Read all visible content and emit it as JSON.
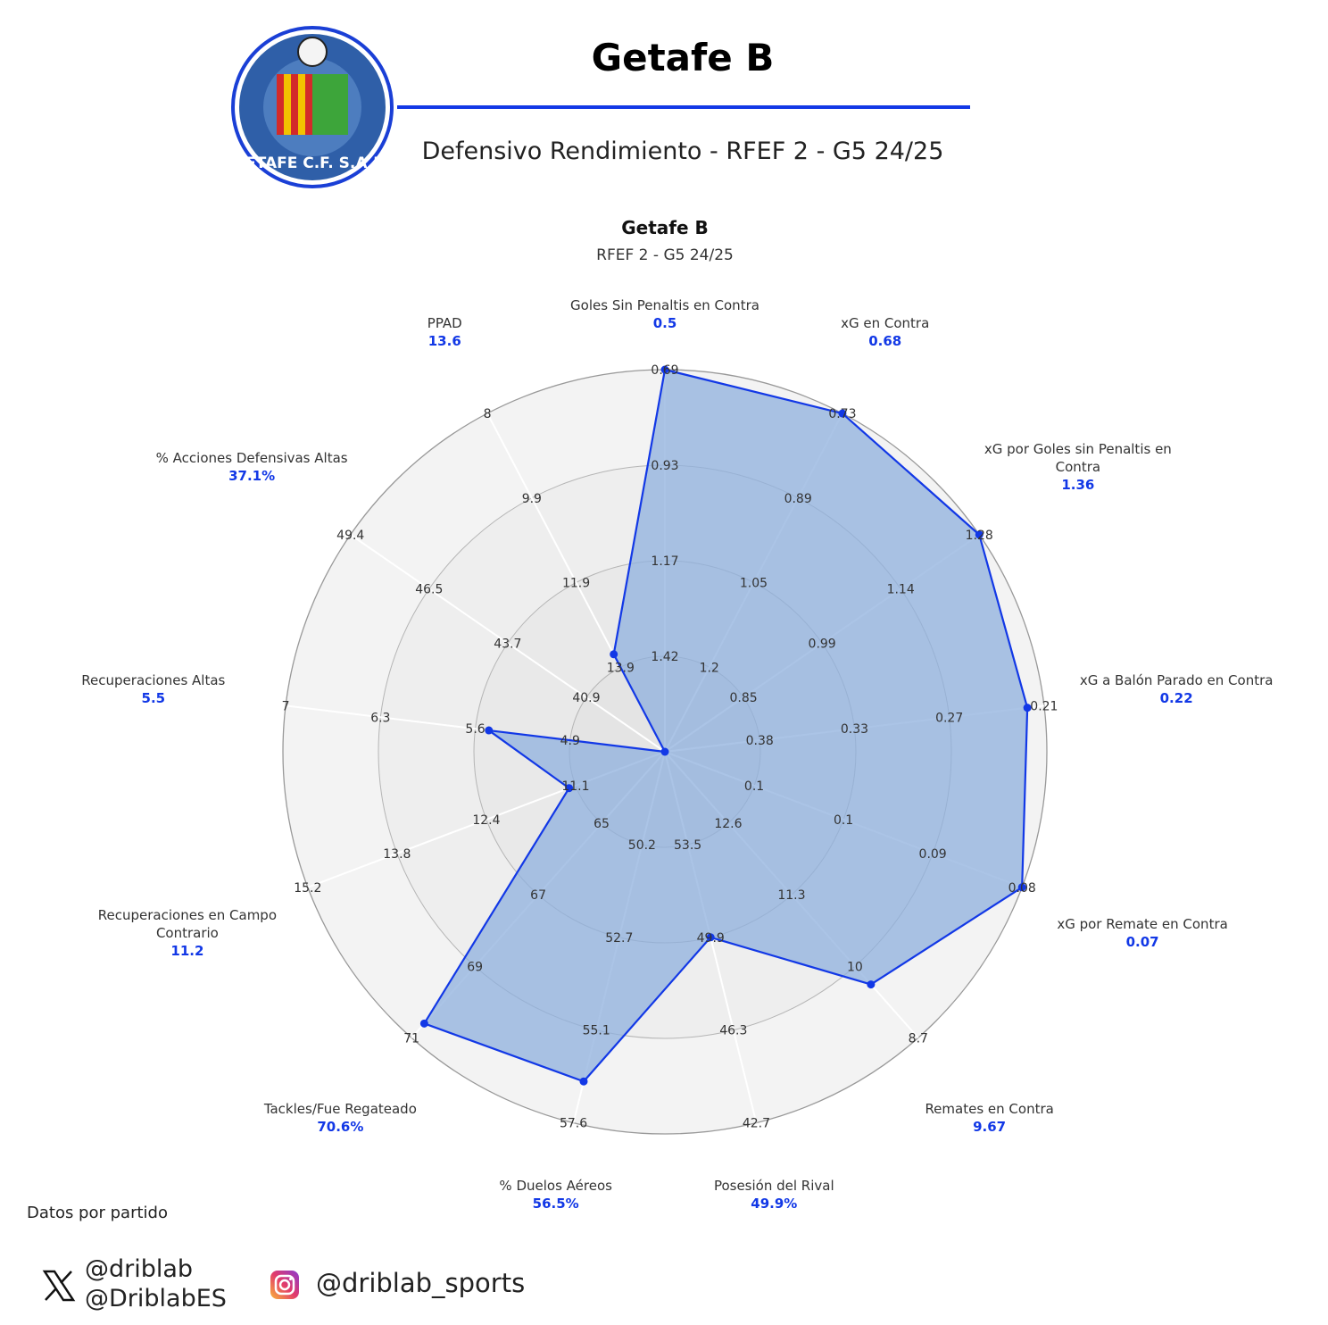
{
  "header": {
    "title": "Getafe B",
    "subtitle": "Defensivo Rendimiento - RFEF 2 - G5 24/25",
    "logo_text": "GETAFE C.F. S.A.D."
  },
  "colors": {
    "accent": "#1238e6",
    "fill": "#8fb0de"
  },
  "chart_data": {
    "type": "radar",
    "title": "Getafe B",
    "subtitle": "RFEF 2 - G5 24/25",
    "grid": true,
    "axes": [
      {
        "label": "Goles Sin Penaltis en Contra",
        "value": 0.5,
        "display": "0.5",
        "ticks": [
          "1.42",
          "1.17",
          "0.93",
          "0.69"
        ]
      },
      {
        "label": "xG en Contra",
        "value": 0.68,
        "display": "0.68",
        "ticks": [
          "1.2",
          "1.05",
          "0.89",
          "0.73"
        ]
      },
      {
        "label": "xG por Goles sin Penaltis en Contra",
        "value": 1.36,
        "display": "1.36",
        "ticks": [
          "0.85",
          "0.99",
          "1.14",
          "1.28"
        ]
      },
      {
        "label": "xG a Balón Parado en Contra",
        "value": 0.22,
        "display": "0.22",
        "ticks": [
          "0.38",
          "0.33",
          "0.27",
          "0.21"
        ]
      },
      {
        "label": "xG por Remate en Contra",
        "value": 0.07,
        "display": "0.07",
        "ticks": [
          "0.1",
          "0.1",
          "0.09",
          "0.08"
        ]
      },
      {
        "label": "Remates en Contra",
        "value": 9.67,
        "display": "9.67",
        "ticks": [
          "12.6",
          "11.3",
          "10",
          "8.7"
        ]
      },
      {
        "label": "Posesión del Rival",
        "value": 49.9,
        "display": "49.9%",
        "ticks": [
          "53.5",
          "49.9",
          "46.3",
          "42.7"
        ]
      },
      {
        "label": "% Duelos Aéreos",
        "value": 56.5,
        "display": "56.5%",
        "ticks": [
          "50.2",
          "52.7",
          "55.1",
          "57.6"
        ]
      },
      {
        "label": "Tackles/Fue Regateado",
        "value": 70.6,
        "display": "70.6%",
        "ticks": [
          "65",
          "67",
          "69",
          "71"
        ]
      },
      {
        "label": "Recuperaciones en Campo Contrario",
        "value": 11.2,
        "display": "11.2",
        "ticks": [
          "11.1",
          "12.4",
          "13.8",
          "15.2"
        ]
      },
      {
        "label": "Recuperaciones Altas",
        "value": 5.5,
        "display": "5.5",
        "ticks": [
          "4.9",
          "5.6",
          "6.3",
          "7"
        ]
      },
      {
        "label": "% Acciones Defensivas Altas",
        "value": 37.1,
        "display": "37.1%",
        "ticks": [
          "40.9",
          "43.7",
          "46.5",
          "49.4"
        ]
      },
      {
        "label": "PPAD",
        "value": 13.6,
        "display": "13.6",
        "ticks": [
          "13.9",
          "11.9",
          "9.9",
          "8"
        ]
      }
    ]
  },
  "footer": {
    "note": "Datos por partido",
    "x_handles": [
      "@driblab",
      "@DriblabES"
    ],
    "instagram_handle": "@driblab_sports",
    "icons": [
      "x-logo-icon",
      "instagram-icon"
    ]
  }
}
